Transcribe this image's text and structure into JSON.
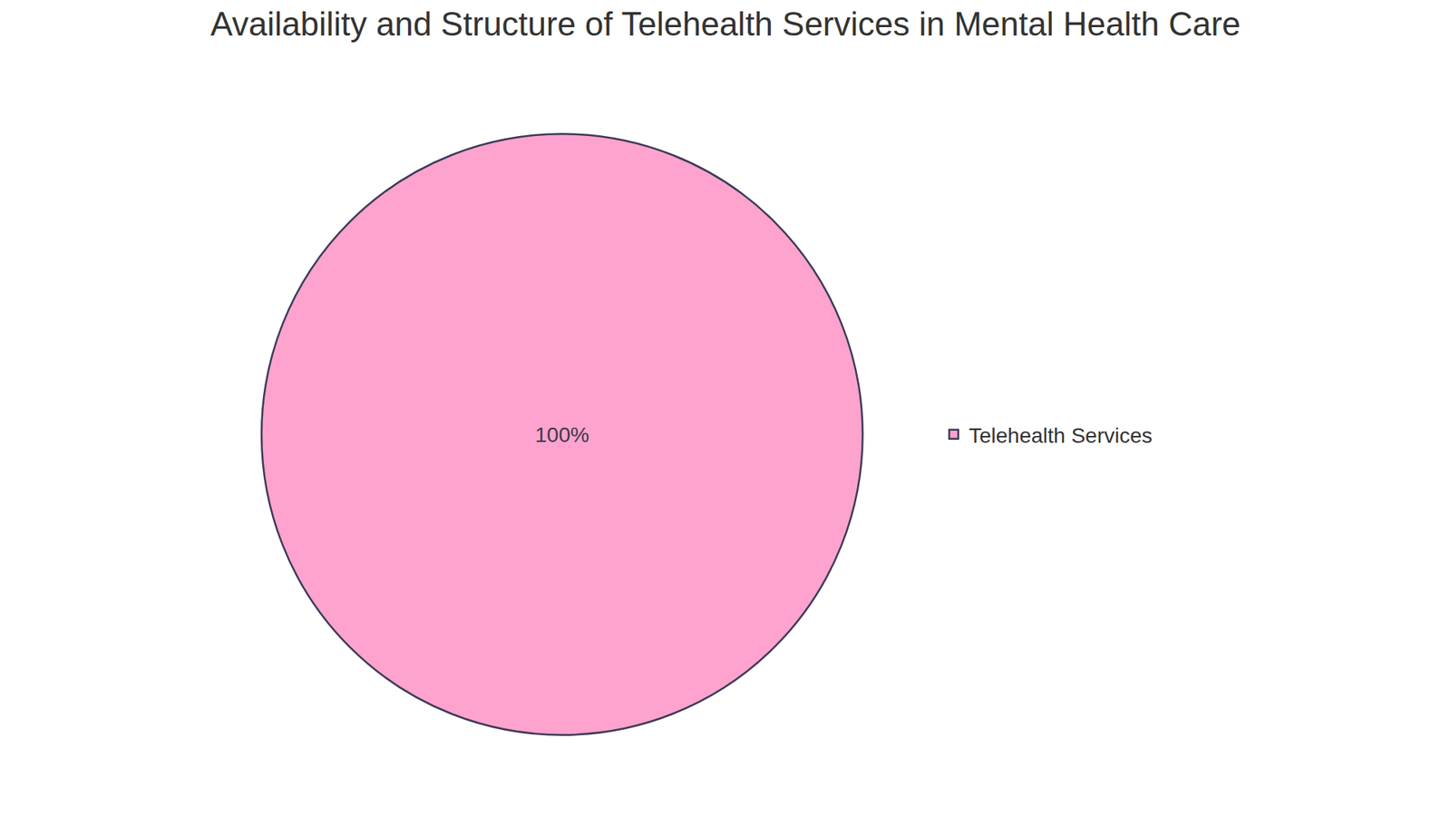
{
  "chart_data": {
    "type": "pie",
    "title": "Availability and Structure of Telehealth Services in Mental Health Care",
    "categories": [
      "Telehealth Services"
    ],
    "values": [
      100
    ],
    "value_labels": [
      "100%"
    ],
    "colors": [
      "#fda3cd"
    ],
    "data_labels": true,
    "legend": "right"
  }
}
